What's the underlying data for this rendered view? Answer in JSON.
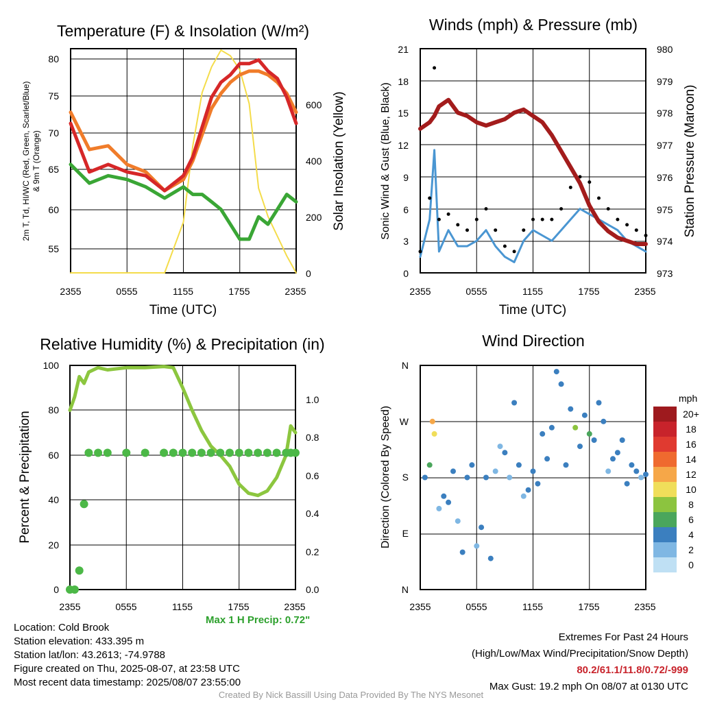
{
  "colors": {
    "temp_red": "#d62728",
    "dewpoint_green": "#3aa635",
    "temp_9m_orange": "#f07c2a",
    "insolation_yellow": "#f4dc4a",
    "wind_blue": "#4a96d2",
    "gust_black": "#000000",
    "pressure_maroon": "#a31c1c",
    "rh_lightgreen": "#8cc63f",
    "precip_green": "#4cb847",
    "extremes_red": "#c8232b",
    "maxprecip_green": "#2ca02c",
    "credit_grey": "#999999"
  },
  "x_ticks": [
    "2355",
    "0555",
    "1155",
    "1755",
    "2355"
  ],
  "panels": {
    "temp": {
      "title": "Temperature (F) & Insolation (W/m²)",
      "xlabel": "Time (UTC)",
      "ylabel_line1": "2m T, Td, HI/WC (Red, Green, Scarlet/Blue)",
      "ylabel_line2": "& 9m T (Orange)",
      "ylabel_right": "Solar Insolation (Yellow)",
      "y_ticks": [
        "55",
        "60",
        "65",
        "70",
        "75",
        "80"
      ],
      "y2_ticks": [
        "0",
        "200",
        "400",
        "600"
      ]
    },
    "wind": {
      "title": "Winds (mph) & Pressure (mb)",
      "xlabel": "Time (UTC)",
      "ylabel": "Sonic Wind & Gust (Blue, Black)",
      "ylabel_right": "Station Pressure (Maroon)",
      "y_ticks": [
        "0",
        "3",
        "6",
        "9",
        "12",
        "15",
        "18",
        "21"
      ],
      "y2_ticks": [
        "973",
        "974",
        "975",
        "976",
        "977",
        "978",
        "979",
        "980"
      ]
    },
    "rh": {
      "title": "Relative Humidity (%) & Precipitation (in)",
      "ylabel": "Percent & Precipitation",
      "y_ticks": [
        "0",
        "20",
        "40",
        "60",
        "80",
        "100"
      ],
      "y2_ticks": [
        "0.0",
        "0.2",
        "0.4",
        "0.6",
        "0.8",
        "1.0"
      ],
      "max_precip": "Max 1 H Precip: 0.72\""
    },
    "dir": {
      "title": "Wind Direction",
      "ylabel": "Direction (Colored By Speed)",
      "y_ticks": [
        "N",
        "E",
        "S",
        "W",
        "N"
      ],
      "legend_title": "mph",
      "legend_labels": [
        "20+",
        "18",
        "16",
        "14",
        "12",
        "10",
        "8",
        "6",
        "4",
        "2",
        "0"
      ],
      "legend_colors": [
        "#9e1a1e",
        "#c8232b",
        "#e03a30",
        "#ef6a2f",
        "#f6a748",
        "#f0de5a",
        "#8cc43f",
        "#4aa65c",
        "#3b7fbf",
        "#7fb7e3",
        "#bfe0f4"
      ]
    }
  },
  "info": {
    "location": "Location: Cold Brook",
    "elevation": "Station elevation: 433.395 m",
    "latlon": "Station lat/lon: 43.2613; -74.9788",
    "created": "Figure created on Thu, 2025-08-07, at 23:58 UTC",
    "recent": "Most recent data timestamp: 2025/08/07 23:55:00"
  },
  "extremes": {
    "title": "Extremes For Past 24 Hours",
    "subtitle": "(High/Low/Max Wind/Precipitation/Snow Depth)",
    "values": "80.2/61.1/11.8/0.72/-999",
    "gust": "Max Gust: 19.2 mph On 08/07 at 0130 UTC"
  },
  "credit": "Created By Nick Bassill Using Data Provided By The NYS Mesonet",
  "chart_data": [
    {
      "type": "line",
      "title": "Temperature (F) & Insolation (W/m²)",
      "xlabel": "Time (UTC)",
      "x_hours": [
        0,
        2,
        4,
        6,
        8,
        10,
        12,
        13,
        14,
        15,
        16,
        17,
        18,
        19,
        20,
        21,
        22,
        23,
        24
      ],
      "ylim": [
        51.5,
        81.5
      ],
      "y2lim": [
        0,
        795
      ],
      "series": [
        {
          "name": "2m T",
          "axis": "left",
          "values": [
            71.5,
            65,
            66,
            65,
            64.5,
            62.5,
            64.5,
            67,
            71,
            75,
            77,
            78,
            79.5,
            79.5,
            80,
            78.5,
            77.5,
            75,
            71.5
          ]
        },
        {
          "name": "9m T",
          "axis": "left",
          "values": [
            73,
            68,
            68.5,
            66,
            65,
            62.5,
            64,
            66.5,
            70,
            73.5,
            75.5,
            77,
            78,
            78.5,
            78.5,
            78,
            77,
            75.5,
            73
          ]
        },
        {
          "name": "Td",
          "axis": "left",
          "values": [
            66,
            63.5,
            64.5,
            64,
            63,
            61.5,
            63,
            62,
            62,
            61,
            60,
            58,
            56,
            56,
            59,
            58,
            60,
            62,
            61
          ]
        },
        {
          "name": "Solar Insolation",
          "axis": "right",
          "values": [
            0,
            0,
            0,
            0,
            0,
            0,
            180,
            450,
            640,
            730,
            790,
            770,
            720,
            600,
            300,
            200,
            130,
            60,
            0
          ]
        }
      ]
    },
    {
      "type": "line",
      "title": "Winds (mph) & Pressure (mb)",
      "xlabel": "Time (UTC)",
      "x_hours": [
        0,
        1,
        1.5,
        2,
        3,
        4,
        5,
        6,
        7,
        8,
        9,
        10,
        11,
        12,
        13,
        14,
        15,
        16,
        17,
        18,
        19,
        20,
        21,
        22,
        23,
        24
      ],
      "ylim": [
        0,
        21
      ],
      "y2lim": [
        973,
        980
      ],
      "series": [
        {
          "name": "Sonic Wind",
          "axis": "left",
          "values": [
            1.5,
            5,
            11.5,
            2,
            4,
            2.5,
            2.5,
            3,
            4,
            2.5,
            1.5,
            1,
            3,
            4,
            3.5,
            3,
            4,
            5,
            6,
            5.5,
            5,
            4.5,
            4,
            3,
            2.5,
            2
          ]
        },
        {
          "name": "Gust",
          "axis": "left",
          "values": [
            2,
            7,
            19.2,
            5,
            5.5,
            4.5,
            4,
            5,
            6,
            4,
            2.5,
            2,
            4,
            5,
            5,
            5,
            6,
            8,
            9,
            8.5,
            7,
            6,
            5,
            4.5,
            4,
            3.5
          ]
        },
        {
          "name": "Station Pressure",
          "axis": "right",
          "values": [
            977.5,
            977.7,
            977.9,
            978.2,
            978.4,
            978.0,
            977.9,
            977.7,
            977.6,
            977.7,
            977.8,
            978.0,
            978.1,
            977.9,
            977.7,
            977.3,
            976.8,
            976.3,
            975.8,
            975.1,
            974.6,
            974.3,
            974.1,
            974.0,
            973.9,
            973.9
          ]
        }
      ]
    },
    {
      "type": "line",
      "title": "Relative Humidity (%) & Precipitation (in)",
      "x_hours": [
        0,
        0.5,
        1,
        1.5,
        2,
        3,
        4,
        6,
        8,
        10,
        11,
        12,
        13,
        14,
        15,
        16,
        17,
        18,
        19,
        20,
        21,
        22,
        23,
        23.5,
        24
      ],
      "ylim": [
        0,
        100
      ],
      "y2lim": [
        0,
        1.18
      ],
      "series": [
        {
          "name": "Relative Humidity",
          "axis": "left",
          "values": [
            80,
            86,
            95,
            92,
            97,
            99,
            98,
            99,
            99,
            99.5,
            99,
            90,
            80,
            71,
            64,
            60,
            55,
            47,
            43,
            42,
            44,
            50,
            60,
            73,
            70
          ]
        },
        {
          "name": "Precipitation",
          "axis": "right",
          "values": [
            0,
            0,
            0.1,
            0.45,
            0.72,
            0.72,
            0.72,
            0.72,
            0.72,
            0.72,
            0.72,
            0.72,
            0.72,
            0.72,
            0.72,
            0.72,
            0.72,
            0.72,
            0.72,
            0.72,
            0.72,
            0.72,
            0.72,
            0.72,
            0.72
          ]
        }
      ]
    },
    {
      "type": "scatter",
      "title": "Wind Direction",
      "ylabel": "Direction (Colored By Speed)",
      "x_hours": [
        0.5,
        1,
        1.3,
        1.5,
        2,
        2.5,
        3,
        3.5,
        4,
        4.5,
        5,
        5.5,
        6,
        6.5,
        7,
        7.5,
        8,
        8.5,
        9,
        9.5,
        10,
        10.5,
        11,
        11.5,
        12,
        12.5,
        13,
        13.5,
        14,
        14.5,
        15,
        15.5,
        16,
        16.5,
        17,
        17.5,
        18,
        18.5,
        19,
        19.5,
        20,
        20.5,
        21,
        21.5,
        22,
        22.5,
        23,
        23.5,
        24
      ],
      "y_deg": [
        180,
        200,
        270,
        250,
        130,
        150,
        140,
        190,
        110,
        60,
        180,
        200,
        70,
        100,
        180,
        50,
        190,
        230,
        220,
        180,
        300,
        200,
        150,
        160,
        190,
        170,
        250,
        210,
        260,
        350,
        330,
        200,
        290,
        260,
        230,
        280,
        250,
        240,
        300,
        270,
        190,
        210,
        220,
        240,
        170,
        200,
        190,
        180,
        185
      ],
      "speed_mph": [
        4,
        6,
        12,
        10,
        2,
        4,
        3,
        4,
        2,
        4,
        3,
        4,
        2,
        4,
        4,
        3,
        1,
        2,
        3,
        2,
        3,
        4,
        2,
        4,
        3,
        4,
        3,
        4,
        4,
        3,
        4,
        3,
        4,
        8,
        4,
        3,
        6,
        4,
        3,
        4,
        2,
        3,
        4,
        3,
        4,
        3,
        3,
        2,
        3
      ],
      "colorbar_label": "mph"
    }
  ]
}
